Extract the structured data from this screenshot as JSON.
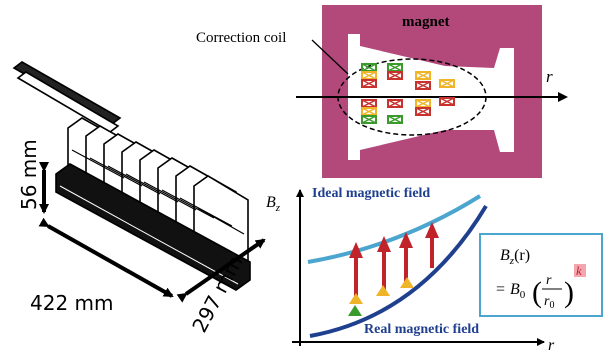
{
  "device": {
    "dim_height": "56 mm",
    "dim_length": "422 mm",
    "dim_width": "297 mm"
  },
  "magnet_panel": {
    "title": "magnet",
    "coil_label": "Correction coil",
    "axis_label": "r",
    "yoke_color": "#b2497a",
    "coil_colors": [
      "#c8322e",
      "#3a9a2c",
      "#f0b429"
    ]
  },
  "field_chart": {
    "y_axis_label": "B",
    "y_axis_sub": "z",
    "x_axis_label": "r",
    "ideal_label": "Ideal magnetic field",
    "real_label": "Real magnetic field",
    "ideal_color": "#4aa6cf",
    "real_color": "#1f3f8f",
    "arrow_color": "#c0242a",
    "formula": {
      "lhs_main": "B",
      "lhs_sub": "z",
      "lhs_arg": "(r)",
      "eq": "=",
      "coef": "B",
      "coef_sub": "0",
      "num": "r",
      "den_main": "r",
      "den_sub": "0",
      "exponent": "k",
      "box_color": "#4aa6cf",
      "exp_bg": "#f4a6b0"
    }
  }
}
